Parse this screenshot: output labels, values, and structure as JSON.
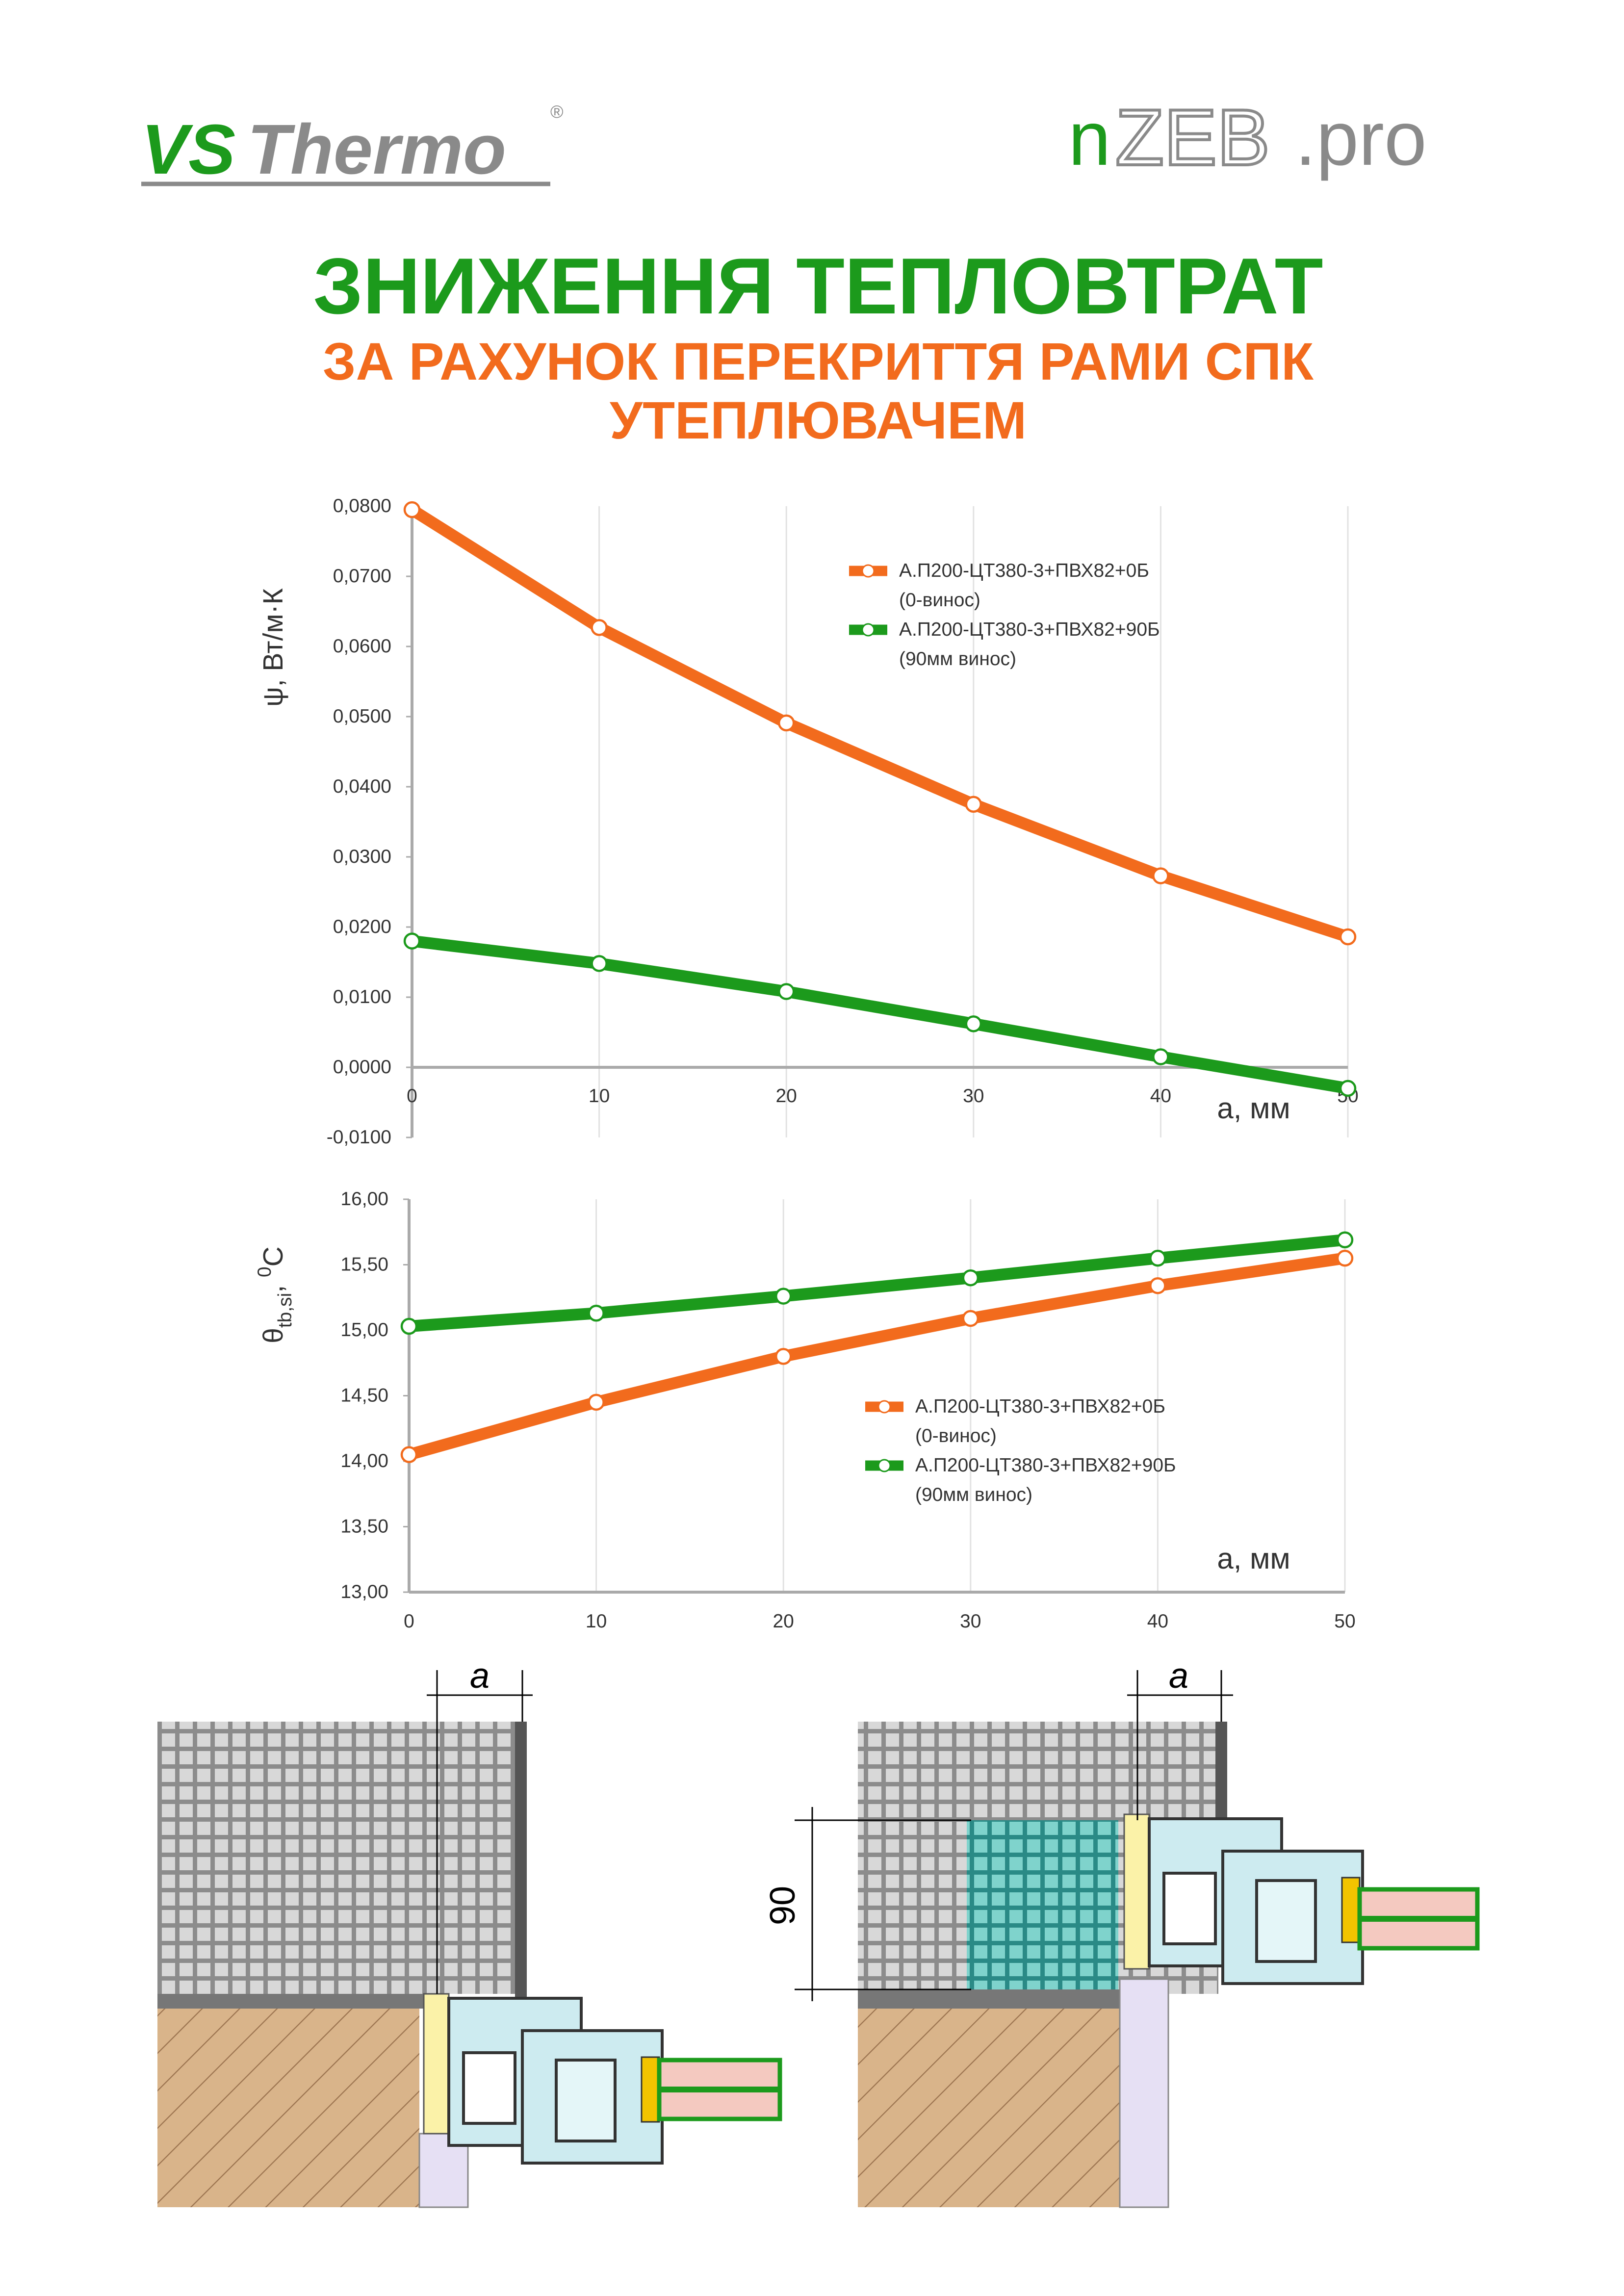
{
  "header": {
    "logo_left": {
      "part1": "VS",
      "part2": "Thermo",
      "mark": "®"
    },
    "logo_right": {
      "part1": "n",
      "part2": "ZEB",
      "part3": ".pro"
    },
    "title": "ЗНИЖЕННЯ ТЕПЛОВТРАТ",
    "subtitle_lines": [
      "ЗА РАХУНОК ПЕРЕКРИТТЯ РАМИ СПК",
      "УТЕПЛЮВАЧЕМ"
    ]
  },
  "chart_data": [
    {
      "type": "line",
      "y_label": "ψ, Вт/м·К",
      "x_label": "a, мм",
      "x": [
        0,
        10,
        20,
        30,
        40,
        50
      ],
      "xlim": [
        0,
        50
      ],
      "xticks": [
        0,
        10,
        20,
        30,
        40,
        50
      ],
      "ylim": [
        -0.01,
        0.08
      ],
      "yticks": [
        {
          "value": -0.01,
          "label": "-0,0100"
        },
        {
          "value": 0,
          "label": "0,0000"
        },
        {
          "value": 0.01,
          "label": "0,0100"
        },
        {
          "value": 0.02,
          "label": "0,0200"
        },
        {
          "value": 0.03,
          "label": "0,0300"
        },
        {
          "value": 0.04,
          "label": "0,0400"
        },
        {
          "value": 0.05,
          "label": "0,0500"
        },
        {
          "value": 0.06,
          "label": "0,0600"
        },
        {
          "value": 0.07,
          "label": "0,0700"
        },
        {
          "value": 0.08,
          "label": "0,0800"
        }
      ],
      "series": [
        {
          "name": "А.П200-ЦТ380-3+ПВХ82+0Б\n(0-винос)",
          "color": "#f26b1d",
          "values": [
            0.0795,
            0.0627,
            0.0491,
            0.0375,
            0.0273,
            0.0186
          ]
        },
        {
          "name": "А.П200-ЦТ380-3+ПВХ82+90Б\n(90мм винос)",
          "color": "#1c9a1c",
          "values": [
            0.018,
            0.0148,
            0.0108,
            0.0062,
            0.0015,
            -0.003
          ]
        }
      ]
    },
    {
      "type": "line",
      "y_label_parts": [
        "θ",
        "tb,si",
        ", ",
        "0",
        "C"
      ],
      "x_label": "a, мм",
      "x": [
        0,
        10,
        20,
        30,
        40,
        50
      ],
      "xlim": [
        0,
        50
      ],
      "xticks": [
        0,
        10,
        20,
        30,
        40,
        50
      ],
      "ylim": [
        13,
        16
      ],
      "yticks": [
        {
          "value": 13,
          "label": "13,00"
        },
        {
          "value": 13.5,
          "label": "13,50"
        },
        {
          "value": 14,
          "label": "14,00"
        },
        {
          "value": 14.5,
          "label": "14,50"
        },
        {
          "value": 15,
          "label": "15,00"
        },
        {
          "value": 15.5,
          "label": "15,50"
        },
        {
          "value": 16,
          "label": "16,00"
        }
      ],
      "series": [
        {
          "name": "А.П200-ЦТ380-3+ПВХ82+0Б\n(0-винос)",
          "color": "#f26b1d",
          "values": [
            14.05,
            14.45,
            14.8,
            15.09,
            15.34,
            15.55
          ]
        },
        {
          "name": "А.П200-ЦТ380-3+ПВХ82+90Б\n(90мм винос)",
          "color": "#1c9a1c",
          "values": [
            15.03,
            15.13,
            15.26,
            15.4,
            15.55,
            15.69
          ]
        }
      ]
    }
  ],
  "diagrams": {
    "left_dim": "a",
    "right_dim": "a",
    "right_offset": "90"
  }
}
